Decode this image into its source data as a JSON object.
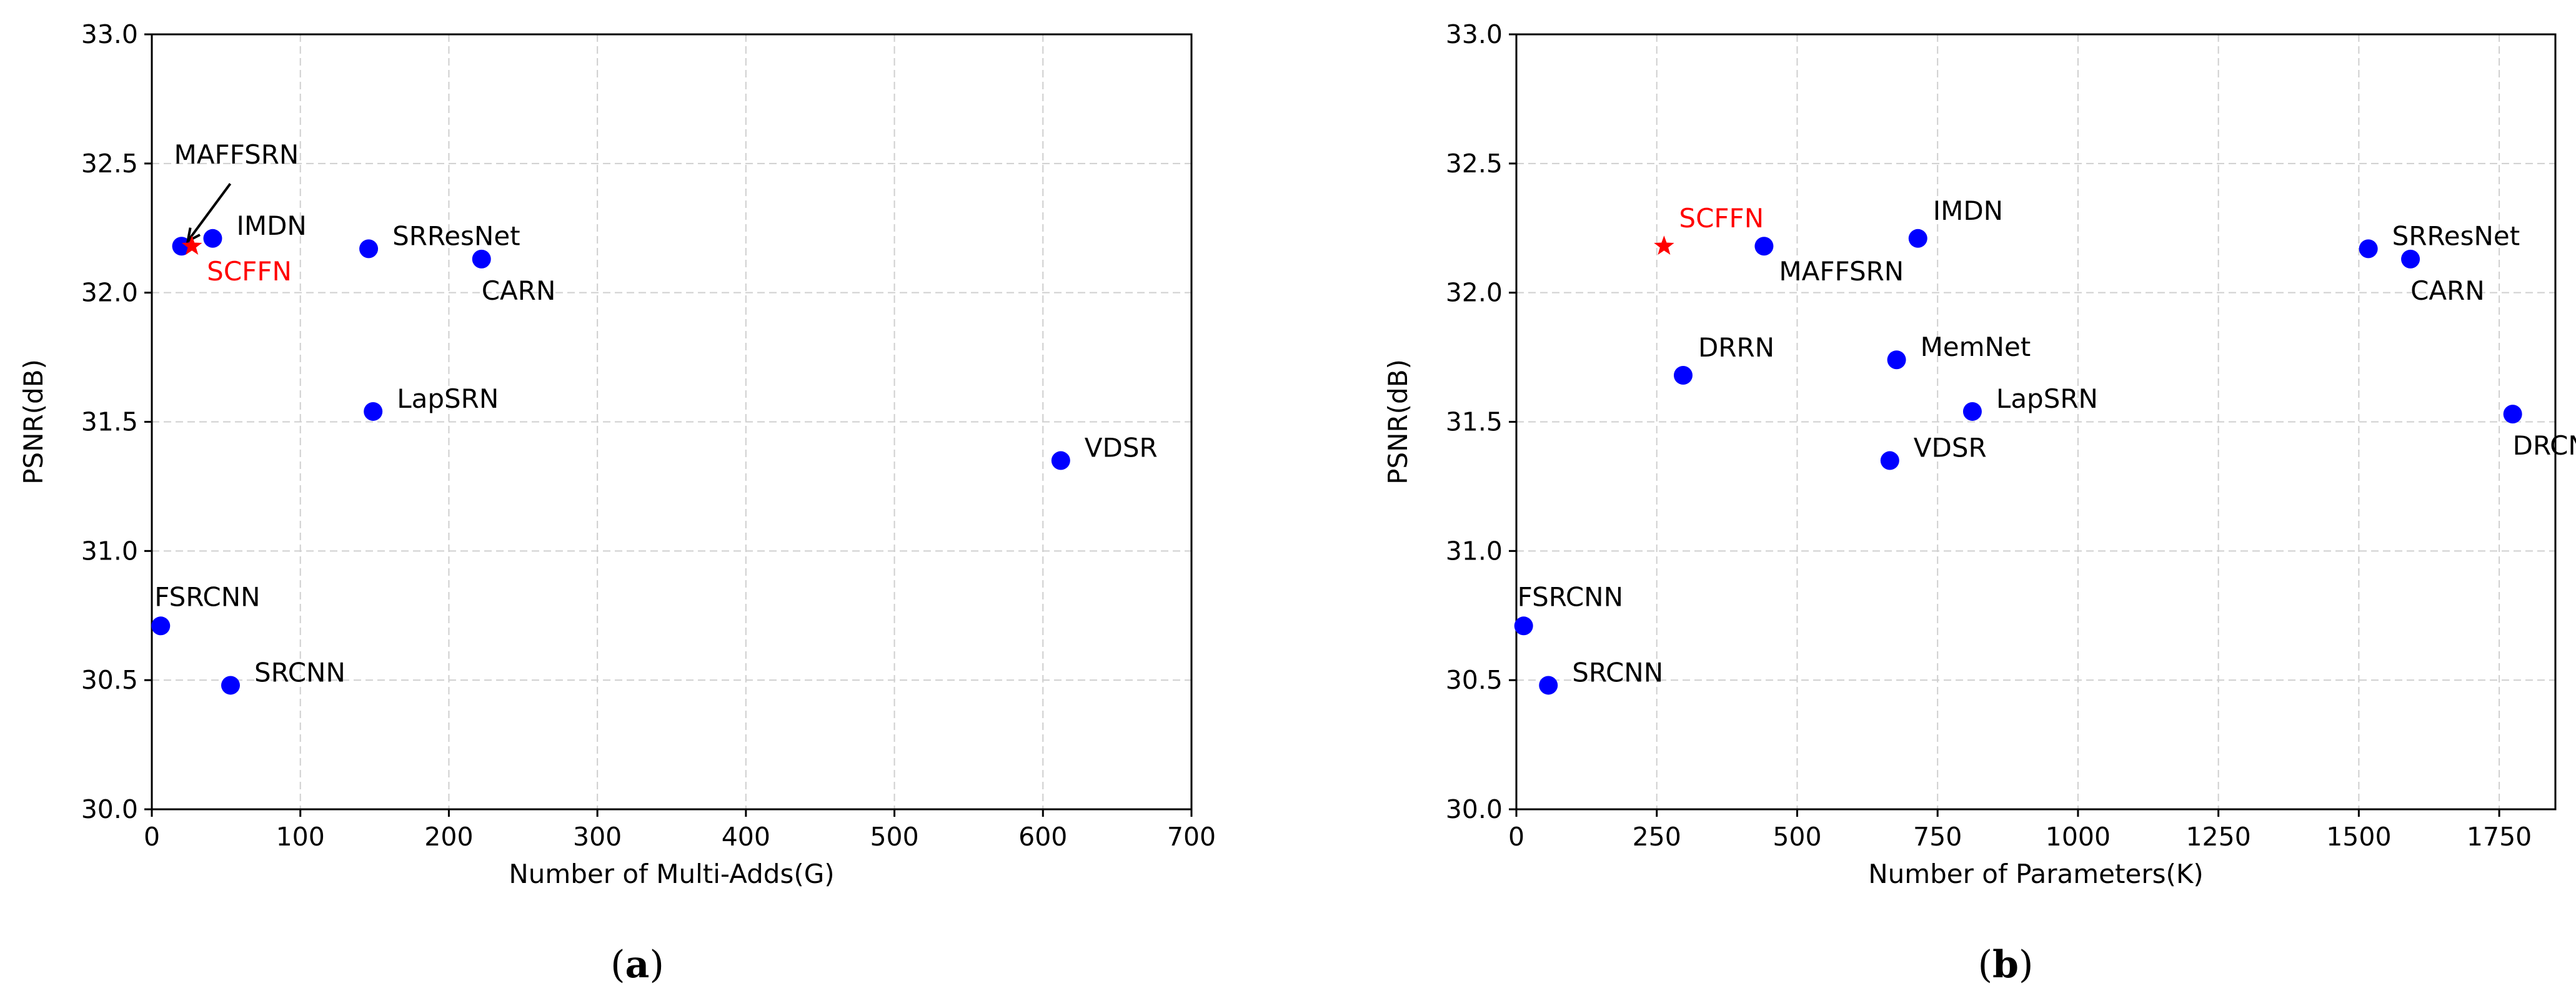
{
  "chart_data": [
    {
      "type": "scatter",
      "caption": "(a)",
      "caption_letter": "a",
      "xlabel": "Number of Multi-Adds(G)",
      "ylabel": "PSNR(dB)",
      "xlim": [
        0,
        700
      ],
      "ylim": [
        30.0,
        33.0
      ],
      "xticks": [
        0,
        100,
        200,
        300,
        400,
        500,
        600,
        700
      ],
      "xtick_labels": [
        "0",
        "100",
        "200",
        "300",
        "400",
        "500",
        "600",
        "700"
      ],
      "yticks": [
        30.0,
        30.5,
        31.0,
        31.5,
        32.0,
        32.5,
        33.0
      ],
      "ytick_labels": [
        "30.0",
        "30.5",
        "31.0",
        "31.5",
        "32.0",
        "32.5",
        "33.0"
      ],
      "grid": true,
      "points": [
        {
          "name": "FSRCNN",
          "x": 6,
          "y": 30.71,
          "label_pos": "above"
        },
        {
          "name": "SRCNN",
          "x": 53,
          "y": 30.48,
          "label_pos": "right"
        },
        {
          "name": "IMDN",
          "x": 41,
          "y": 32.21,
          "label_pos": "right"
        },
        {
          "name": "MAFFSRN",
          "x": 20,
          "y": 32.18,
          "label_pos": "arrow"
        },
        {
          "name": "SRResNet",
          "x": 146,
          "y": 32.17,
          "label_pos": "right"
        },
        {
          "name": "CARN",
          "x": 222,
          "y": 32.13,
          "label_pos": "below"
        },
        {
          "name": "LapSRN",
          "x": 149,
          "y": 31.54,
          "label_pos": "right"
        },
        {
          "name": "VDSR",
          "x": 612,
          "y": 31.35,
          "label_pos": "right"
        },
        {
          "name": "SCFFN",
          "x": 27,
          "y": 32.18,
          "label_pos": "below-right",
          "highlight": true
        }
      ]
    },
    {
      "type": "scatter",
      "caption": "(b)",
      "caption_letter": "b",
      "xlabel": "Number of Parameters(K)",
      "ylabel": "PSNR(dB)",
      "xlim": [
        0,
        1850
      ],
      "ylim": [
        30.0,
        33.0
      ],
      "xticks": [
        0,
        250,
        500,
        750,
        1000,
        1250,
        1500,
        1750
      ],
      "xtick_labels": [
        "0",
        "250",
        "500",
        "750",
        "1000",
        "1250",
        "1500",
        "1750"
      ],
      "yticks": [
        30.0,
        30.5,
        31.0,
        31.5,
        32.0,
        32.5,
        33.0
      ],
      "ytick_labels": [
        "30.0",
        "30.5",
        "31.0",
        "31.5",
        "32.0",
        "32.5",
        "33.0"
      ],
      "grid": true,
      "points": [
        {
          "name": "FSRCNN",
          "x": 13,
          "y": 30.71,
          "label_pos": "above"
        },
        {
          "name": "SRCNN",
          "x": 57,
          "y": 30.48,
          "label_pos": "right"
        },
        {
          "name": "DRRN",
          "x": 297,
          "y": 31.68,
          "label_pos": "above-right"
        },
        {
          "name": "MAFFSRN",
          "x": 441,
          "y": 32.18,
          "label_pos": "below-right"
        },
        {
          "name": "IMDN",
          "x": 715,
          "y": 32.21,
          "label_pos": "above-right"
        },
        {
          "name": "MemNet",
          "x": 677,
          "y": 31.74,
          "label_pos": "right"
        },
        {
          "name": "VDSR",
          "x": 665,
          "y": 31.35,
          "label_pos": "right"
        },
        {
          "name": "LapSRN",
          "x": 812,
          "y": 31.54,
          "label_pos": "right"
        },
        {
          "name": "SRResNet",
          "x": 1517,
          "y": 32.17,
          "label_pos": "right"
        },
        {
          "name": "CARN",
          "x": 1592,
          "y": 32.13,
          "label_pos": "below"
        },
        {
          "name": "DRCN",
          "x": 1774,
          "y": 31.53,
          "label_pos": "below"
        },
        {
          "name": "SCFFN",
          "x": 263,
          "y": 32.18,
          "label_pos": "above-right",
          "highlight": true
        }
      ]
    }
  ],
  "colors": {
    "point": "#0000ff",
    "highlight": "#ff0000",
    "grid": "#cfcfcf"
  }
}
